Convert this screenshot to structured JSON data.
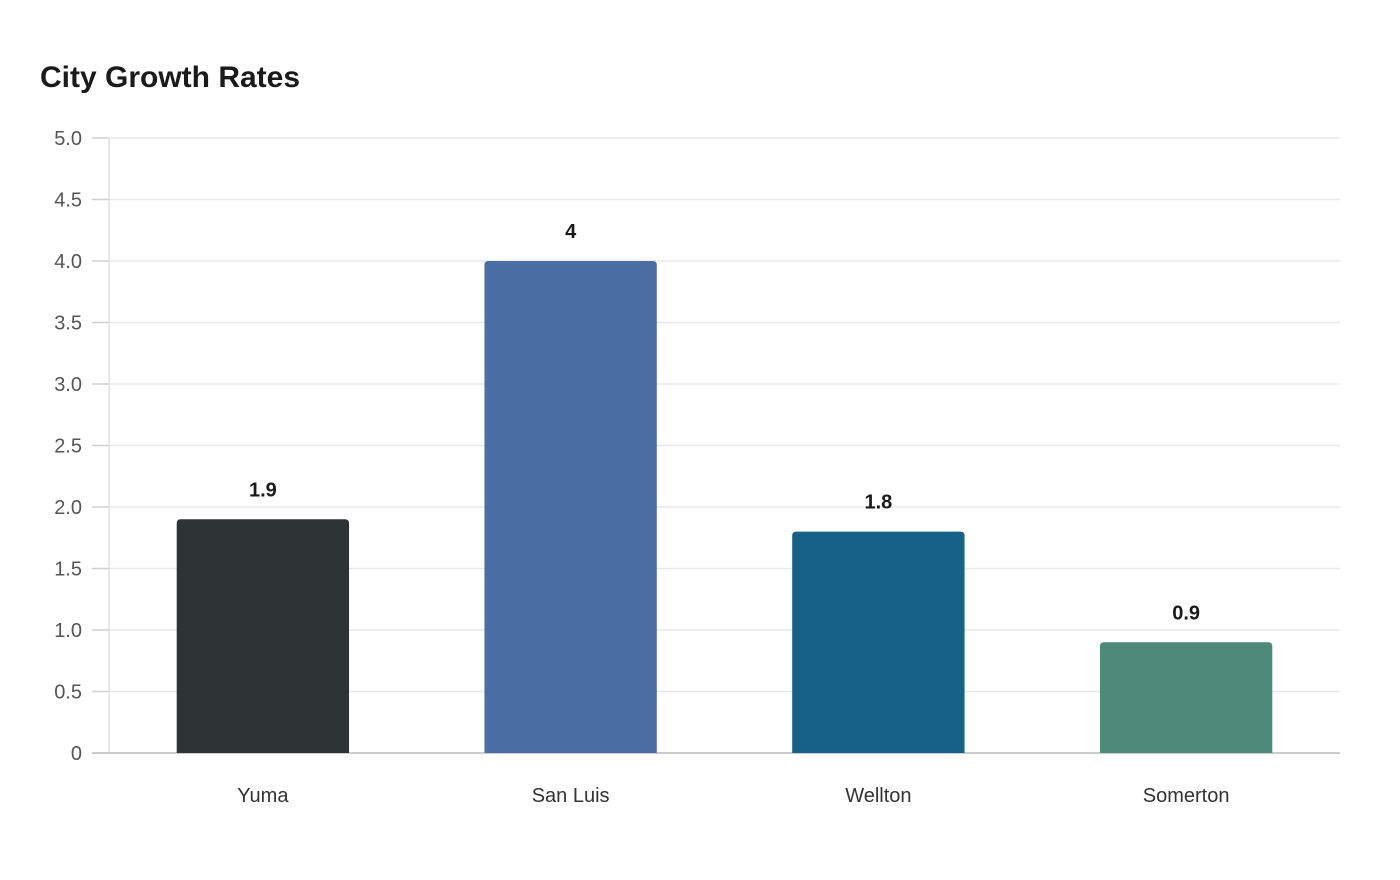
{
  "chart_data": {
    "type": "bar",
    "title": "City Growth Rates",
    "xlabel": "",
    "ylabel": "",
    "categories": [
      "Yuma",
      "San Luis",
      "Wellton",
      "Somerton"
    ],
    "values": [
      1.9,
      4,
      1.8,
      0.9
    ],
    "data_labels": [
      "1.9",
      "4",
      "1.8",
      "0.9"
    ],
    "colors": [
      "#2e3436",
      "#4a6da3",
      "#176087",
      "#4d8b78"
    ],
    "ylim": [
      0,
      5
    ],
    "yticks": [
      0,
      0.5,
      1,
      1.5,
      2,
      2.5,
      3,
      3.5,
      4,
      4.5,
      5
    ],
    "ytick_labels": [
      "0",
      "0.5",
      "1.0",
      "1.5",
      "2.0",
      "2.5",
      "3.0",
      "3.5",
      "4.0",
      "4.5",
      "5.0"
    ],
    "grid": true,
    "legend": "none"
  }
}
